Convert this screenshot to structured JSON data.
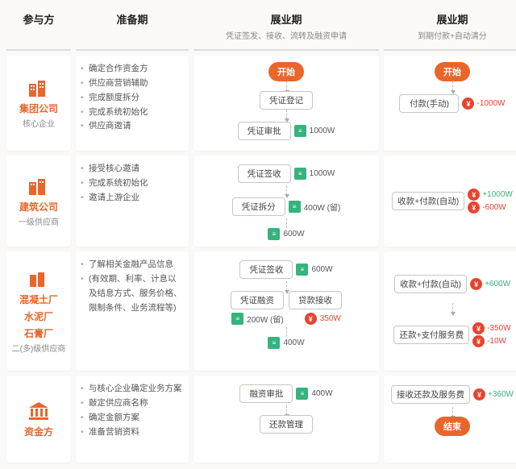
{
  "colors": {
    "accent": "#e8662c",
    "ok": "#36b37e",
    "money": "#e8432e",
    "border": "#c9c5c0"
  },
  "headers": {
    "c1": {
      "main": "参与方"
    },
    "c2": {
      "main": "准备期"
    },
    "c3": {
      "main": "展业期",
      "sub": "凭证签发、接收、流转及融资申请"
    },
    "c4": {
      "main": "展业期",
      "sub": "到期付款+自动清分"
    }
  },
  "parties": {
    "p1": {
      "title": "集团公司",
      "subtitle": "核心企业",
      "color": "orange",
      "icon": "buildings-orange"
    },
    "p2": {
      "title": "建筑公司",
      "subtitle": "一级供应商",
      "color": "orange",
      "icon": "buildings-orange"
    },
    "p3": {
      "title_l1": "混凝土厂",
      "title_l2": "水泥厂",
      "title_l3": "石膏厂",
      "subtitle": "二(多)级供应商",
      "color": "orange",
      "icon": "buildings-orange-sm"
    },
    "p4": {
      "title": "资金方",
      "subtitle": "",
      "color": "orange",
      "icon": "bank-orange"
    }
  },
  "prep": {
    "p1": [
      "确定合作资金方",
      "供应商营销辅助",
      "完成额度拆分",
      "完成系统初始化",
      "供应商邀请"
    ],
    "p2": [
      "接受核心邀请",
      "完成系统初始化",
      "邀请上游企业"
    ],
    "p3": [
      "了解相关金融产品信息",
      "(有效期、利率、计息以及结息方式、服务价格、限制条件、业务流程等)"
    ],
    "p4": [
      "与核心企业确定业务方案",
      "敲定供应商名称",
      "确定金额方案",
      "准备营销资料"
    ]
  },
  "flow3": {
    "start": "开始",
    "n1": "凭证登记",
    "n2": "凭证审批",
    "a2": "1000W",
    "n3": "凭证签收",
    "a3": "1000W",
    "n4": "凭证拆分",
    "a4": "400W (留)",
    "a5": "600W",
    "n6": "凭证签收",
    "a6": "600W",
    "n7": "凭证融资",
    "n7b": "贷款接收",
    "a7a": "200W (留)",
    "a7b": "350W",
    "a8a": "400W",
    "n8": "融资审批",
    "a8b": "400W",
    "n9": "还款管理"
  },
  "flow4": {
    "start": "开始",
    "r1": {
      "node": "付款(手动)",
      "amts": [
        {
          "v": "-1000W",
          "c": "red"
        }
      ]
    },
    "r2": {
      "node": "收款+付款(自动)",
      "amts": [
        {
          "v": "+1000W",
          "c": "green"
        },
        {
          "v": "-600W",
          "c": "red"
        }
      ]
    },
    "r3": {
      "node": "收款+付款(自动)",
      "amts": [
        {
          "v": "+600W",
          "c": "green"
        }
      ]
    },
    "r3b": {
      "node": "还款+支付服务费",
      "amts": [
        {
          "v": "-350W",
          "c": "red"
        },
        {
          "v": "-10W",
          "c": "red"
        }
      ]
    },
    "r4": {
      "node": "接收还款及服务费",
      "amts": [
        {
          "v": "+360W",
          "c": "green"
        }
      ]
    },
    "end": "结束"
  }
}
